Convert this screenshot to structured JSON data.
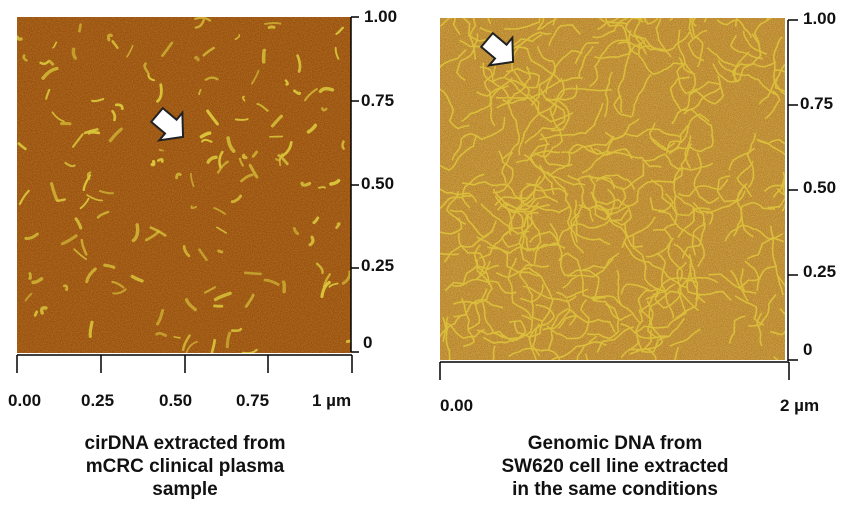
{
  "left_panel": {
    "y_ticks": [
      "1.00",
      "0.75",
      "0.50",
      "0.25",
      "0"
    ],
    "x_ticks": [
      "0.00",
      "0.25",
      "0.50",
      "0.75",
      "1  µm"
    ],
    "caption_lines": [
      "cirDNA extracted from",
      "mCRC clinical plasma",
      "sample"
    ],
    "colors": {
      "background": "#8a3f06",
      "strand": "#d9c53a"
    }
  },
  "right_panel": {
    "y_ticks": [
      "1.00",
      "0.75",
      "0.50",
      "0.25",
      "0"
    ],
    "x_ticks": [
      "0.00",
      "2  µm"
    ],
    "caption_lines": [
      "Genomic DNA from",
      "SW620 cell line extracted",
      "in the same conditions"
    ],
    "colors": {
      "background": "#a0610e",
      "strand": "#e0c63c"
    }
  },
  "icons": [
    "arrow-icon"
  ]
}
